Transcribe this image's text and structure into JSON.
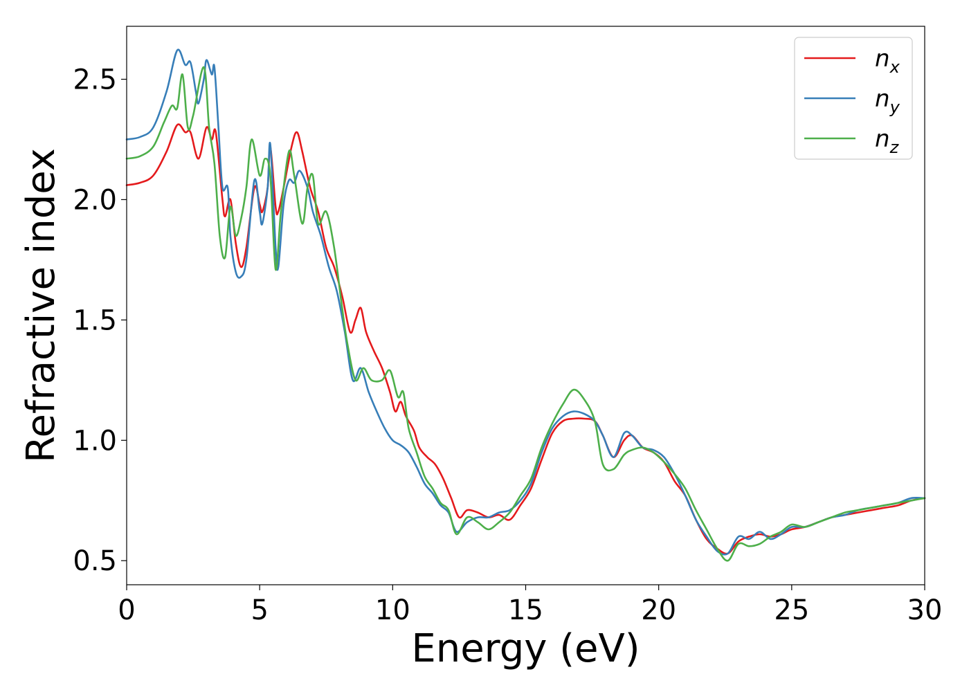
{
  "chart_data": {
    "type": "line",
    "title": "",
    "xlabel": "Energy (eV)",
    "ylabel": "Refractive index",
    "xlim": [
      0,
      30
    ],
    "ylim": [
      0.4,
      2.72
    ],
    "xticks": [
      0,
      5,
      10,
      15,
      20,
      25,
      30
    ],
    "yticks": [
      0.5,
      1.0,
      1.5,
      2.0,
      2.5
    ],
    "grid": false,
    "legend_position": "top-right",
    "series": [
      {
        "name": "n",
        "subscript": "x",
        "color": "#e41a1c",
        "points": [
          [
            0,
            2.06
          ],
          [
            0.5,
            2.07
          ],
          [
            1.0,
            2.1
          ],
          [
            1.5,
            2.2
          ],
          [
            1.9,
            2.31
          ],
          [
            2.2,
            2.28
          ],
          [
            2.4,
            2.28
          ],
          [
            2.7,
            2.17
          ],
          [
            3.0,
            2.3
          ],
          [
            3.2,
            2.25
          ],
          [
            3.35,
            2.28
          ],
          [
            3.6,
            2.0
          ],
          [
            3.7,
            1.93
          ],
          [
            3.9,
            2.0
          ],
          [
            4.1,
            1.82
          ],
          [
            4.3,
            1.72
          ],
          [
            4.5,
            1.8
          ],
          [
            4.8,
            2.05
          ],
          [
            5.0,
            1.98
          ],
          [
            5.1,
            1.95
          ],
          [
            5.3,
            2.05
          ],
          [
            5.4,
            2.22
          ],
          [
            5.6,
            1.97
          ],
          [
            5.7,
            1.95
          ],
          [
            5.9,
            2.05
          ],
          [
            6.2,
            2.22
          ],
          [
            6.4,
            2.28
          ],
          [
            6.6,
            2.2
          ],
          [
            6.9,
            2.05
          ],
          [
            7.2,
            1.95
          ],
          [
            7.5,
            1.8
          ],
          [
            7.8,
            1.72
          ],
          [
            8.1,
            1.6
          ],
          [
            8.4,
            1.45
          ],
          [
            8.6,
            1.5
          ],
          [
            8.8,
            1.55
          ],
          [
            9.0,
            1.45
          ],
          [
            9.3,
            1.37
          ],
          [
            9.6,
            1.3
          ],
          [
            9.9,
            1.2
          ],
          [
            10.1,
            1.12
          ],
          [
            10.3,
            1.16
          ],
          [
            10.5,
            1.1
          ],
          [
            10.8,
            1.04
          ],
          [
            11.0,
            0.97
          ],
          [
            11.3,
            0.93
          ],
          [
            11.6,
            0.9
          ],
          [
            11.9,
            0.84
          ],
          [
            12.2,
            0.76
          ],
          [
            12.5,
            0.68
          ],
          [
            12.8,
            0.71
          ],
          [
            13.2,
            0.7
          ],
          [
            13.6,
            0.68
          ],
          [
            14.0,
            0.69
          ],
          [
            14.4,
            0.67
          ],
          [
            14.8,
            0.73
          ],
          [
            15.2,
            0.8
          ],
          [
            15.6,
            0.92
          ],
          [
            16.0,
            1.03
          ],
          [
            16.4,
            1.08
          ],
          [
            16.8,
            1.09
          ],
          [
            17.2,
            1.09
          ],
          [
            17.6,
            1.08
          ],
          [
            17.9,
            1.02
          ],
          [
            18.3,
            0.93
          ],
          [
            18.7,
            1.0
          ],
          [
            19.0,
            1.02
          ],
          [
            19.4,
            0.97
          ],
          [
            19.8,
            0.95
          ],
          [
            20.2,
            0.91
          ],
          [
            20.6,
            0.83
          ],
          [
            21.0,
            0.77
          ],
          [
            21.4,
            0.67
          ],
          [
            21.8,
            0.59
          ],
          [
            22.2,
            0.55
          ],
          [
            22.6,
            0.53
          ],
          [
            23.0,
            0.58
          ],
          [
            23.4,
            0.6
          ],
          [
            23.8,
            0.61
          ],
          [
            24.2,
            0.6
          ],
          [
            24.6,
            0.61
          ],
          [
            25.0,
            0.63
          ],
          [
            25.5,
            0.64
          ],
          [
            26.0,
            0.66
          ],
          [
            26.5,
            0.68
          ],
          [
            27.0,
            0.69
          ],
          [
            27.5,
            0.7
          ],
          [
            28.0,
            0.71
          ],
          [
            28.5,
            0.72
          ],
          [
            29.0,
            0.73
          ],
          [
            29.5,
            0.75
          ],
          [
            30.0,
            0.76
          ]
        ]
      },
      {
        "name": "n",
        "subscript": "y",
        "color": "#377eb8",
        "points": [
          [
            0,
            2.25
          ],
          [
            0.5,
            2.26
          ],
          [
            1.0,
            2.3
          ],
          [
            1.5,
            2.45
          ],
          [
            1.9,
            2.62
          ],
          [
            2.2,
            2.56
          ],
          [
            2.4,
            2.57
          ],
          [
            2.6,
            2.45
          ],
          [
            2.7,
            2.4
          ],
          [
            2.9,
            2.5
          ],
          [
            3.0,
            2.58
          ],
          [
            3.2,
            2.52
          ],
          [
            3.3,
            2.55
          ],
          [
            3.45,
            2.3
          ],
          [
            3.6,
            2.05
          ],
          [
            3.8,
            2.05
          ],
          [
            3.9,
            1.85
          ],
          [
            4.1,
            1.7
          ],
          [
            4.3,
            1.68
          ],
          [
            4.5,
            1.75
          ],
          [
            4.8,
            2.08
          ],
          [
            5.0,
            1.95
          ],
          [
            5.1,
            1.9
          ],
          [
            5.3,
            2.05
          ],
          [
            5.4,
            2.23
          ],
          [
            5.6,
            1.8
          ],
          [
            5.7,
            1.72
          ],
          [
            5.9,
            1.98
          ],
          [
            6.1,
            2.08
          ],
          [
            6.3,
            2.07
          ],
          [
            6.5,
            2.12
          ],
          [
            6.8,
            2.05
          ],
          [
            7.0,
            1.95
          ],
          [
            7.3,
            1.85
          ],
          [
            7.6,
            1.72
          ],
          [
            7.9,
            1.62
          ],
          [
            8.2,
            1.45
          ],
          [
            8.5,
            1.25
          ],
          [
            8.8,
            1.3
          ],
          [
            9.1,
            1.2
          ],
          [
            9.4,
            1.12
          ],
          [
            9.7,
            1.05
          ],
          [
            10.0,
            1.0
          ],
          [
            10.3,
            0.98
          ],
          [
            10.6,
            0.95
          ],
          [
            10.9,
            0.89
          ],
          [
            11.2,
            0.82
          ],
          [
            11.5,
            0.78
          ],
          [
            11.8,
            0.73
          ],
          [
            12.1,
            0.7
          ],
          [
            12.4,
            0.62
          ],
          [
            12.8,
            0.66
          ],
          [
            13.2,
            0.68
          ],
          [
            13.6,
            0.68
          ],
          [
            14.0,
            0.7
          ],
          [
            14.4,
            0.71
          ],
          [
            14.8,
            0.75
          ],
          [
            15.2,
            0.82
          ],
          [
            15.6,
            0.95
          ],
          [
            16.0,
            1.05
          ],
          [
            16.4,
            1.1
          ],
          [
            16.8,
            1.12
          ],
          [
            17.2,
            1.11
          ],
          [
            17.6,
            1.08
          ],
          [
            17.9,
            1.02
          ],
          [
            18.3,
            0.93
          ],
          [
            18.7,
            1.03
          ],
          [
            19.0,
            1.02
          ],
          [
            19.4,
            0.97
          ],
          [
            19.8,
            0.96
          ],
          [
            20.2,
            0.93
          ],
          [
            20.6,
            0.86
          ],
          [
            21.0,
            0.77
          ],
          [
            21.4,
            0.67
          ],
          [
            21.8,
            0.6
          ],
          [
            22.2,
            0.54
          ],
          [
            22.6,
            0.53
          ],
          [
            23.0,
            0.6
          ],
          [
            23.4,
            0.59
          ],
          [
            23.8,
            0.62
          ],
          [
            24.2,
            0.59
          ],
          [
            24.6,
            0.61
          ],
          [
            25.0,
            0.64
          ],
          [
            25.5,
            0.64
          ],
          [
            26.0,
            0.66
          ],
          [
            26.5,
            0.68
          ],
          [
            27.0,
            0.69
          ],
          [
            27.5,
            0.71
          ],
          [
            28.0,
            0.72
          ],
          [
            28.5,
            0.73
          ],
          [
            29.0,
            0.74
          ],
          [
            29.5,
            0.76
          ],
          [
            30.0,
            0.76
          ]
        ]
      },
      {
        "name": "n",
        "subscript": "z",
        "color": "#4daf4a",
        "points": [
          [
            0,
            2.17
          ],
          [
            0.5,
            2.18
          ],
          [
            1.0,
            2.22
          ],
          [
            1.4,
            2.32
          ],
          [
            1.7,
            2.39
          ],
          [
            1.9,
            2.38
          ],
          [
            2.1,
            2.52
          ],
          [
            2.3,
            2.3
          ],
          [
            2.5,
            2.35
          ],
          [
            2.9,
            2.55
          ],
          [
            3.1,
            2.3
          ],
          [
            3.3,
            2.15
          ],
          [
            3.5,
            1.85
          ],
          [
            3.7,
            1.76
          ],
          [
            3.9,
            1.97
          ],
          [
            4.1,
            1.85
          ],
          [
            4.3,
            1.92
          ],
          [
            4.5,
            2.05
          ],
          [
            4.7,
            2.25
          ],
          [
            5.0,
            2.1
          ],
          [
            5.2,
            2.17
          ],
          [
            5.4,
            2.1
          ],
          [
            5.6,
            1.71
          ],
          [
            5.8,
            1.95
          ],
          [
            6.1,
            2.2
          ],
          [
            6.3,
            2.1
          ],
          [
            6.6,
            1.9
          ],
          [
            6.8,
            2.05
          ],
          [
            7.0,
            2.1
          ],
          [
            7.2,
            1.9
          ],
          [
            7.5,
            1.95
          ],
          [
            7.8,
            1.8
          ],
          [
            8.1,
            1.55
          ],
          [
            8.3,
            1.4
          ],
          [
            8.6,
            1.25
          ],
          [
            8.9,
            1.3
          ],
          [
            9.2,
            1.25
          ],
          [
            9.6,
            1.25
          ],
          [
            9.9,
            1.29
          ],
          [
            10.2,
            1.18
          ],
          [
            10.4,
            1.2
          ],
          [
            10.6,
            1.05
          ],
          [
            10.9,
            0.95
          ],
          [
            11.2,
            0.85
          ],
          [
            11.5,
            0.8
          ],
          [
            11.8,
            0.74
          ],
          [
            12.1,
            0.71
          ],
          [
            12.4,
            0.61
          ],
          [
            12.8,
            0.68
          ],
          [
            13.2,
            0.66
          ],
          [
            13.6,
            0.63
          ],
          [
            14.0,
            0.66
          ],
          [
            14.4,
            0.7
          ],
          [
            14.8,
            0.77
          ],
          [
            15.2,
            0.84
          ],
          [
            15.6,
            0.97
          ],
          [
            16.0,
            1.07
          ],
          [
            16.4,
            1.15
          ],
          [
            16.8,
            1.21
          ],
          [
            17.2,
            1.17
          ],
          [
            17.6,
            1.08
          ],
          [
            17.9,
            0.9
          ],
          [
            18.3,
            0.88
          ],
          [
            18.7,
            0.94
          ],
          [
            19.0,
            0.96
          ],
          [
            19.4,
            0.97
          ],
          [
            19.8,
            0.95
          ],
          [
            20.2,
            0.91
          ],
          [
            20.6,
            0.86
          ],
          [
            21.0,
            0.8
          ],
          [
            21.4,
            0.71
          ],
          [
            21.8,
            0.63
          ],
          [
            22.2,
            0.55
          ],
          [
            22.6,
            0.5
          ],
          [
            23.0,
            0.57
          ],
          [
            23.4,
            0.56
          ],
          [
            23.8,
            0.57
          ],
          [
            24.2,
            0.6
          ],
          [
            24.6,
            0.62
          ],
          [
            25.0,
            0.65
          ],
          [
            25.5,
            0.64
          ],
          [
            26.0,
            0.66
          ],
          [
            26.5,
            0.68
          ],
          [
            27.0,
            0.7
          ],
          [
            27.5,
            0.71
          ],
          [
            28.0,
            0.72
          ],
          [
            28.5,
            0.73
          ],
          [
            29.0,
            0.74
          ],
          [
            29.5,
            0.75
          ],
          [
            30.0,
            0.76
          ]
        ]
      }
    ]
  }
}
